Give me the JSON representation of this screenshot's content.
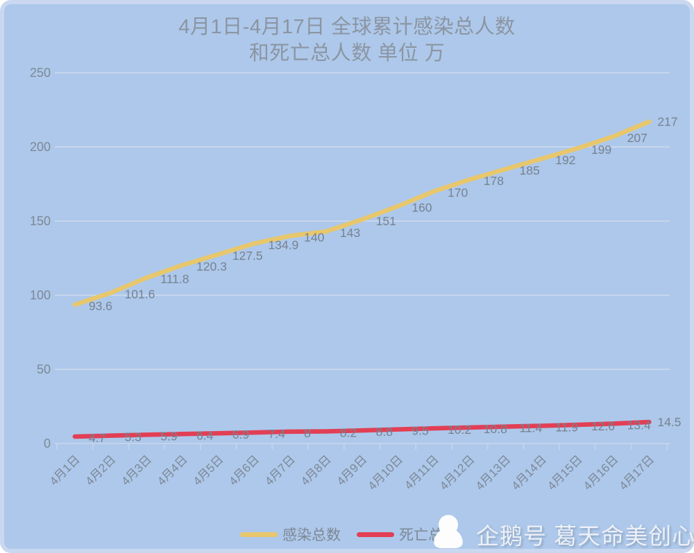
{
  "page": {
    "title_line1": "4月1日-4月17日 全球累计感染总人数",
    "title_line2": "和死亡总人数 单位 万"
  },
  "legend": {
    "items": [
      {
        "label": "感染总数",
        "color": "#e8c76c"
      },
      {
        "label": "死亡总数",
        "color": "#e23f55"
      }
    ]
  },
  "watermark": {
    "icon": "penguin-icon",
    "text": "企鹅号 葛天命美创心"
  },
  "colors": {
    "background": "#adc8ea",
    "panel_border": "#c9d8f0",
    "gridline": "#c7d6ee",
    "axis_line": "#c2d3ec",
    "axis_text": "#7d8896",
    "data_label_text": "#778291",
    "title_text": "#8b95a2",
    "infections_line": "#e8c76c",
    "deaths_line": "#e23f55",
    "watermark_text": "#edf0f6",
    "penguin_fill": "#fdfdfe"
  },
  "chart_data": {
    "type": "line",
    "title": "4月1日-4月17日 全球累计感染总人数和死亡总人数 单位 万",
    "categories": [
      "4月1日",
      "4月2日",
      "4月3日",
      "4月4日",
      "4月5日",
      "4月6日",
      "4月7日",
      "4月8日",
      "4月9日",
      "4月10日",
      "4月11日",
      "4月12日",
      "4月13日",
      "4月14日",
      "4月15日",
      "4月16日",
      "4月17日"
    ],
    "series": [
      {
        "name": "感染总数",
        "color": "#e8c76c",
        "values": [
          93.6,
          101.6,
          111.8,
          120.3,
          127.5,
          134.9,
          140,
          143,
          151,
          160,
          170,
          178,
          185,
          192,
          199,
          207,
          217
        ]
      },
      {
        "name": "死亡总数",
        "color": "#e23f55",
        "values": [
          4.7,
          5.3,
          5.9,
          6.4,
          6.9,
          7.4,
          8,
          8.2,
          8.8,
          9.5,
          10.2,
          10.8,
          11.4,
          11.9,
          12.6,
          13.4,
          14.5
        ]
      }
    ],
    "xlabel": "",
    "ylabel": "",
    "ylim": [
      0,
      250
    ],
    "yticks": [
      0,
      50,
      100,
      150,
      200,
      250
    ],
    "grid": true,
    "data_labels": true,
    "legend_position": "bottom"
  }
}
